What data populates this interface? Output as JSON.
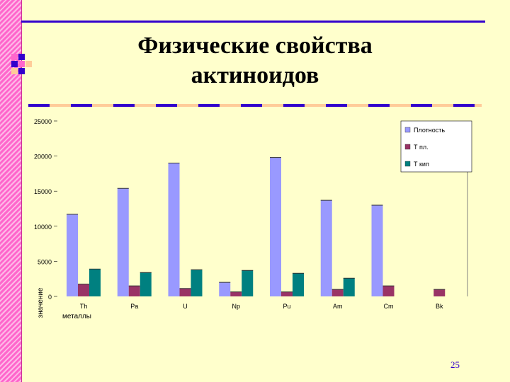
{
  "slide": {
    "title_line1": "Физические свойства",
    "title_line2": "актиноидов",
    "page_number": "25"
  },
  "theme": {
    "background": "#ffffcc",
    "accent_blue": "#3300cc",
    "accent_pink": "#ff66cc",
    "accent_peach": "#ffcc99"
  },
  "chart_data": {
    "type": "bar",
    "title": "",
    "xlabel": "металлы",
    "ylabel": "значение",
    "ylim": [
      0,
      25000
    ],
    "yticks": [
      0,
      5000,
      10000,
      15000,
      20000,
      25000
    ],
    "grid": false,
    "legend_position": "top-right",
    "categories": [
      "Th",
      "Pa",
      "U",
      "Np",
      "Pu",
      "Am",
      "Cm",
      "Bk"
    ],
    "series": [
      {
        "name": "Плотность",
        "color": "#9999ff",
        "values": [
          11700,
          15400,
          19000,
          2000,
          19800,
          13700,
          13000,
          null
        ]
      },
      {
        "name": "Т пл.",
        "color": "#993366",
        "values": [
          1750,
          1500,
          1130,
          640,
          640,
          1000,
          1500,
          1000
        ]
      },
      {
        "name": "Т кип",
        "color": "#008080",
        "values": [
          3900,
          3400,
          3800,
          3700,
          3300,
          2600,
          null,
          null
        ]
      }
    ]
  }
}
